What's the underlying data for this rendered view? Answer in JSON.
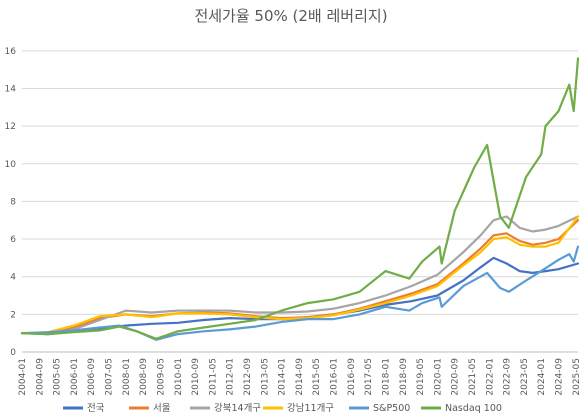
{
  "chart_data": {
    "type": "line",
    "title": "전세가율 50% (2배 레버리지)",
    "xlabel": "",
    "ylabel": "",
    "ylim": [
      0,
      17
    ],
    "yticks": [
      0,
      2,
      4,
      6,
      8,
      10,
      12,
      14,
      16
    ],
    "xlim": [
      "2004-01",
      "2025-06"
    ],
    "xticks": [
      "2004-01",
      "2004-09",
      "2005-05",
      "2006-01",
      "2006-09",
      "2007-05",
      "2008-01",
      "2008-09",
      "2009-05",
      "2010-01",
      "2010-09",
      "2011-05",
      "2012-01",
      "2012-09",
      "2013-05",
      "2014-01",
      "2014-09",
      "2015-05",
      "2016-01",
      "2016-09",
      "2017-05",
      "2018-01",
      "2018-09",
      "2019-05",
      "2020-01",
      "2020-09",
      "2021-05",
      "2022-01",
      "2022-09",
      "2023-05",
      "2024-01",
      "2024-09",
      "2025-05"
    ],
    "grid": true,
    "legend_position": "bottom",
    "series": [
      {
        "name": "전국",
        "color": "#4472c4",
        "points": [
          [
            "2004-01",
            1.0
          ],
          [
            "2005-01",
            0.95
          ],
          [
            "2006-01",
            1.1
          ],
          [
            "2007-01",
            1.25
          ],
          [
            "2008-01",
            1.4
          ],
          [
            "2009-01",
            1.5
          ],
          [
            "2010-01",
            1.55
          ],
          [
            "2011-01",
            1.7
          ],
          [
            "2012-01",
            1.8
          ],
          [
            "2013-01",
            1.75
          ],
          [
            "2014-01",
            1.75
          ],
          [
            "2015-01",
            1.85
          ],
          [
            "2016-01",
            2.0
          ],
          [
            "2017-01",
            2.2
          ],
          [
            "2018-01",
            2.5
          ],
          [
            "2019-01",
            2.7
          ],
          [
            "2020-01",
            3.0
          ],
          [
            "2021-01",
            3.8
          ],
          [
            "2021-09",
            4.5
          ],
          [
            "2022-03",
            5.0
          ],
          [
            "2022-09",
            4.7
          ],
          [
            "2023-03",
            4.3
          ],
          [
            "2023-09",
            4.2
          ],
          [
            "2024-03",
            4.3
          ],
          [
            "2024-09",
            4.4
          ],
          [
            "2025-06",
            4.7
          ]
        ]
      },
      {
        "name": "서울",
        "color": "#ed7d31",
        "points": [
          [
            "2004-01",
            1.0
          ],
          [
            "2005-01",
            1.0
          ],
          [
            "2006-01",
            1.3
          ],
          [
            "2007-01",
            1.8
          ],
          [
            "2008-01",
            2.0
          ],
          [
            "2009-01",
            1.9
          ],
          [
            "2010-01",
            2.05
          ],
          [
            "2011-01",
            2.1
          ],
          [
            "2012-01",
            2.05
          ],
          [
            "2013-01",
            1.9
          ],
          [
            "2014-01",
            1.8
          ],
          [
            "2015-01",
            1.85
          ],
          [
            "2016-01",
            2.0
          ],
          [
            "2017-01",
            2.3
          ],
          [
            "2018-01",
            2.7
          ],
          [
            "2019-01",
            3.1
          ],
          [
            "2020-01",
            3.6
          ],
          [
            "2021-01",
            4.7
          ],
          [
            "2021-09",
            5.5
          ],
          [
            "2022-03",
            6.2
          ],
          [
            "2022-09",
            6.3
          ],
          [
            "2023-03",
            5.9
          ],
          [
            "2023-09",
            5.7
          ],
          [
            "2024-03",
            5.8
          ],
          [
            "2024-09",
            6.0
          ],
          [
            "2025-06",
            7.0
          ]
        ]
      },
      {
        "name": "강북14개구",
        "color": "#a5a5a5",
        "points": [
          [
            "2004-01",
            1.0
          ],
          [
            "2005-01",
            1.0
          ],
          [
            "2006-01",
            1.2
          ],
          [
            "2007-01",
            1.7
          ],
          [
            "2008-01",
            2.2
          ],
          [
            "2009-01",
            2.1
          ],
          [
            "2010-01",
            2.2
          ],
          [
            "2011-01",
            2.2
          ],
          [
            "2012-01",
            2.2
          ],
          [
            "2013-01",
            2.1
          ],
          [
            "2014-01",
            2.1
          ],
          [
            "2015-01",
            2.15
          ],
          [
            "2016-01",
            2.3
          ],
          [
            "2017-01",
            2.6
          ],
          [
            "2018-01",
            3.0
          ],
          [
            "2019-01",
            3.5
          ],
          [
            "2020-01",
            4.1
          ],
          [
            "2021-01",
            5.3
          ],
          [
            "2021-09",
            6.2
          ],
          [
            "2022-03",
            7.0
          ],
          [
            "2022-09",
            7.2
          ],
          [
            "2023-03",
            6.6
          ],
          [
            "2023-09",
            6.4
          ],
          [
            "2024-03",
            6.5
          ],
          [
            "2024-09",
            6.7
          ],
          [
            "2025-06",
            7.2
          ]
        ]
      },
      {
        "name": "강남11개구",
        "color": "#ffc000",
        "points": [
          [
            "2004-01",
            1.0
          ],
          [
            "2005-01",
            1.05
          ],
          [
            "2006-01",
            1.4
          ],
          [
            "2007-01",
            1.9
          ],
          [
            "2008-01",
            2.0
          ],
          [
            "2009-01",
            1.85
          ],
          [
            "2010-01",
            2.05
          ],
          [
            "2011-01",
            2.05
          ],
          [
            "2012-01",
            2.0
          ],
          [
            "2013-01",
            1.85
          ],
          [
            "2014-01",
            1.75
          ],
          [
            "2015-01",
            1.8
          ],
          [
            "2016-01",
            1.95
          ],
          [
            "2017-01",
            2.25
          ],
          [
            "2018-01",
            2.6
          ],
          [
            "2019-01",
            3.0
          ],
          [
            "2020-01",
            3.5
          ],
          [
            "2021-01",
            4.6
          ],
          [
            "2021-09",
            5.3
          ],
          [
            "2022-03",
            6.0
          ],
          [
            "2022-09",
            6.1
          ],
          [
            "2023-03",
            5.7
          ],
          [
            "2023-09",
            5.6
          ],
          [
            "2024-03",
            5.6
          ],
          [
            "2024-09",
            5.8
          ],
          [
            "2025-06",
            7.2
          ]
        ]
      },
      {
        "name": "S&P500",
        "color": "#5b9bd5",
        "points": [
          [
            "2004-01",
            1.0
          ],
          [
            "2005-01",
            1.05
          ],
          [
            "2006-01",
            1.15
          ],
          [
            "2007-01",
            1.3
          ],
          [
            "2007-10",
            1.4
          ],
          [
            "2008-06",
            1.1
          ],
          [
            "2009-03",
            0.65
          ],
          [
            "2010-01",
            0.95
          ],
          [
            "2011-01",
            1.1
          ],
          [
            "2012-01",
            1.2
          ],
          [
            "2013-01",
            1.35
          ],
          [
            "2014-01",
            1.6
          ],
          [
            "2015-01",
            1.75
          ],
          [
            "2016-01",
            1.75
          ],
          [
            "2017-01",
            2.0
          ],
          [
            "2018-01",
            2.4
          ],
          [
            "2018-12",
            2.2
          ],
          [
            "2019-06",
            2.6
          ],
          [
            "2020-02",
            2.9
          ],
          [
            "2020-03",
            2.4
          ],
          [
            "2021-01",
            3.5
          ],
          [
            "2021-12",
            4.2
          ],
          [
            "2022-06",
            3.4
          ],
          [
            "2022-10",
            3.2
          ],
          [
            "2023-06",
            3.8
          ],
          [
            "2024-01",
            4.3
          ],
          [
            "2024-09",
            4.9
          ],
          [
            "2025-02",
            5.2
          ],
          [
            "2025-04",
            4.8
          ],
          [
            "2025-06",
            5.6
          ]
        ]
      },
      {
        "name": "Nasdaq 100",
        "color": "#70ad47",
        "points": [
          [
            "2004-01",
            1.0
          ],
          [
            "2005-01",
            0.95
          ],
          [
            "2006-01",
            1.05
          ],
          [
            "2007-01",
            1.15
          ],
          [
            "2007-10",
            1.35
          ],
          [
            "2008-06",
            1.1
          ],
          [
            "2009-03",
            0.7
          ],
          [
            "2010-01",
            1.1
          ],
          [
            "2011-01",
            1.3
          ],
          [
            "2012-01",
            1.5
          ],
          [
            "2013-01",
            1.7
          ],
          [
            "2014-01",
            2.2
          ],
          [
            "2015-01",
            2.6
          ],
          [
            "2016-01",
            2.8
          ],
          [
            "2017-01",
            3.2
          ],
          [
            "2018-01",
            4.3
          ],
          [
            "2018-12",
            3.9
          ],
          [
            "2019-06",
            4.8
          ],
          [
            "2020-02",
            5.6
          ],
          [
            "2020-03",
            4.7
          ],
          [
            "2020-09",
            7.5
          ],
          [
            "2021-06",
            9.8
          ],
          [
            "2021-12",
            11.0
          ],
          [
            "2022-06",
            7.2
          ],
          [
            "2022-10",
            6.6
          ],
          [
            "2023-06",
            9.3
          ],
          [
            "2024-01",
            10.5
          ],
          [
            "2024-03",
            12.0
          ],
          [
            "2024-09",
            12.8
          ],
          [
            "2025-02",
            14.2
          ],
          [
            "2025-04",
            12.8
          ],
          [
            "2025-06",
            15.6
          ]
        ]
      }
    ]
  }
}
